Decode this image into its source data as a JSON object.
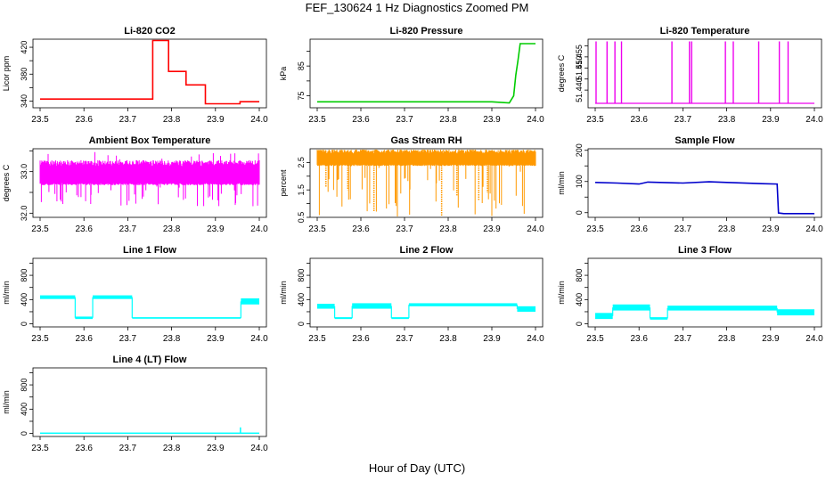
{
  "title": "FEF_130624  1 Hz Diagnostics Zoomed PM",
  "xlabel": "Hour of Day (UTC)",
  "chart_data": [
    {
      "type": "line",
      "title": "Li-820 CO2",
      "ylabel": "Licor ppm",
      "color": "#ff0000",
      "xlim": [
        23.5,
        24.0
      ],
      "ylim": [
        330,
        432
      ],
      "xticks": [
        "23.5",
        "23.6",
        "23.7",
        "23.8",
        "23.9",
        "24.0"
      ],
      "yticks": [
        340,
        360,
        380,
        400,
        420
      ],
      "ytick_labels": [
        "340",
        "",
        "380",
        "",
        "420"
      ],
      "series": [
        {
          "x": [
            23.5,
            23.757,
            23.757,
            23.793,
            23.793,
            23.833,
            23.833,
            23.877,
            23.877,
            23.956,
            23.956,
            24.0
          ],
          "y": [
            343,
            343,
            430,
            430,
            384,
            384,
            364,
            364,
            336,
            336,
            339,
            339
          ]
        }
      ]
    },
    {
      "type": "line",
      "title": "Li-820 Pressure",
      "ylabel": "kPa",
      "color": "#00cc00",
      "xlim": [
        23.5,
        24.0
      ],
      "ylim": [
        71,
        94
      ],
      "xticks": [
        "23.5",
        "23.6",
        "23.7",
        "23.8",
        "23.9",
        "24.0"
      ],
      "yticks": [
        75,
        80,
        85,
        90
      ],
      "ytick_labels": [
        "75",
        "",
        "85",
        ""
      ],
      "series": [
        {
          "x": [
            23.5,
            23.9,
            23.94,
            23.95,
            23.955,
            23.96,
            23.965,
            24.0
          ],
          "y": [
            73,
            73,
            72.6,
            75,
            82,
            87,
            92.5,
            92.5
          ]
        }
      ]
    },
    {
      "type": "line",
      "title": "Li-820 Temperature",
      "ylabel": "degrees C",
      "color": "#ee00ee",
      "xlim": [
        23.5,
        24.0
      ],
      "ylim": [
        51.432,
        51.463
      ],
      "xticks": [
        "23.5",
        "23.6",
        "23.7",
        "23.8",
        "23.9",
        "24.0"
      ],
      "yticks": [
        51.44,
        51.445,
        51.45,
        51.455,
        51.46
      ],
      "ytick_labels": [
        "51.440",
        "",
        "51.450",
        "51.455",
        ""
      ],
      "baseline": 51.434,
      "peak": 51.462,
      "spikes": [
        23.502,
        23.527,
        23.545,
        23.56,
        23.675,
        23.715,
        23.72,
        23.797,
        23.815,
        23.873,
        23.92,
        23.94
      ]
    },
    {
      "type": "line",
      "title": "Ambient Box Temperature",
      "ylabel": "degrees C",
      "color": "#ff00ff",
      "xlim": [
        23.5,
        24.0
      ],
      "ylim": [
        31.9,
        33.55
      ],
      "xticks": [
        "23.5",
        "23.6",
        "23.7",
        "23.8",
        "23.9",
        "24.0"
      ],
      "yticks": [
        32.0,
        32.5,
        33.0,
        33.5
      ],
      "ytick_labels": [
        "32.0",
        "",
        "33.0",
        ""
      ],
      "band": {
        "low": 32.7,
        "high": 33.2,
        "min": 32.1,
        "max": 33.5
      }
    },
    {
      "type": "line",
      "title": "Gas Stream RH",
      "ylabel": "percent",
      "color": "#ff9900",
      "xlim": [
        23.5,
        24.0
      ],
      "ylim": [
        0.5,
        3.0
      ],
      "xticks": [
        "23.5",
        "23.6",
        "23.7",
        "23.8",
        "23.9",
        "24.0"
      ],
      "yticks": [
        0.5,
        1.0,
        1.5,
        2.0,
        2.5
      ],
      "ytick_labels": [
        "0.5",
        "",
        "1.5",
        "",
        "2.5"
      ],
      "band": {
        "low": 2.4,
        "high": 2.9,
        "min": 0.5,
        "max": 3.0
      },
      "dips": [
        {
          "x": 23.63,
          "y": 0.7
        },
        {
          "x": 23.785,
          "y": 0.5
        },
        {
          "x": 23.57,
          "y": 1.5
        },
        {
          "x": 23.82,
          "y": 1.3
        },
        {
          "x": 23.87,
          "y": 1.1
        },
        {
          "x": 23.89,
          "y": 1.4
        },
        {
          "x": 23.52,
          "y": 1.6
        }
      ]
    },
    {
      "type": "line",
      "title": "Sample Flow",
      "ylabel": "ml/min",
      "color": "#0000cc",
      "xlim": [
        23.5,
        24.0
      ],
      "ylim": [
        -15,
        205
      ],
      "xticks": [
        "23.5",
        "23.6",
        "23.7",
        "23.8",
        "23.9",
        "24.0"
      ],
      "yticks": [
        0,
        50,
        100,
        150,
        200
      ],
      "ytick_labels": [
        "0",
        "",
        "100",
        "",
        "200"
      ],
      "series": [
        {
          "x": [
            23.5,
            23.55,
            23.6,
            23.62,
            23.7,
            23.76,
            23.8,
            23.88,
            23.915,
            23.918,
            23.93,
            24.0
          ],
          "y": [
            97,
            95,
            92,
            98,
            95,
            99,
            97,
            93,
            92,
            -1,
            -3,
            -3
          ]
        }
      ]
    },
    {
      "type": "line",
      "title": "Line 1 Flow",
      "ylabel": "ml/min",
      "color": "#00ffff",
      "xlim": [
        23.5,
        24.0
      ],
      "ylim": [
        -50,
        1080
      ],
      "xticks": [
        "23.5",
        "23.6",
        "23.7",
        "23.8",
        "23.9",
        "24.0"
      ],
      "yticks": [
        0,
        200,
        400,
        600,
        800,
        1000
      ],
      "ytick_labels": [
        "0",
        "400",
        "800"
      ],
      "ytick_label_values": [
        0,
        400,
        800
      ],
      "segments": [
        {
          "x0": 23.5,
          "x1": 23.58,
          "low": 410,
          "high": 470
        },
        {
          "x0": 23.58,
          "x1": 23.62,
          "low": 80,
          "high": 120
        },
        {
          "x0": 23.62,
          "x1": 23.71,
          "low": 410,
          "high": 470
        },
        {
          "x0": 23.71,
          "x1": 23.958,
          "low": 85,
          "high": 110
        },
        {
          "x0": 23.958,
          "x1": 24.0,
          "low": 320,
          "high": 420
        }
      ]
    },
    {
      "type": "line",
      "title": "Line 2 Flow",
      "ylabel": "ml/min",
      "color": "#00ffff",
      "xlim": [
        23.5,
        24.0
      ],
      "ylim": [
        -50,
        1080
      ],
      "xticks": [
        "23.5",
        "23.6",
        "23.7",
        "23.8",
        "23.9",
        "24.0"
      ],
      "yticks": [
        0,
        200,
        400,
        600,
        800,
        1000
      ],
      "ytick_labels": [
        "0",
        "400",
        "800"
      ],
      "ytick_label_values": [
        0,
        400,
        800
      ],
      "segments": [
        {
          "x0": 23.5,
          "x1": 23.54,
          "low": 250,
          "high": 330
        },
        {
          "x0": 23.54,
          "x1": 23.58,
          "low": 80,
          "high": 110
        },
        {
          "x0": 23.58,
          "x1": 23.67,
          "low": 250,
          "high": 340
        },
        {
          "x0": 23.67,
          "x1": 23.71,
          "low": 80,
          "high": 110
        },
        {
          "x0": 23.71,
          "x1": 23.958,
          "low": 290,
          "high": 340
        },
        {
          "x0": 23.958,
          "x1": 24.0,
          "low": 200,
          "high": 290
        }
      ]
    },
    {
      "type": "line",
      "title": "Line 3 Flow",
      "ylabel": "ml/min",
      "color": "#00ffff",
      "xlim": [
        23.5,
        24.0
      ],
      "ylim": [
        -50,
        1080
      ],
      "xticks": [
        "23.5",
        "23.6",
        "23.7",
        "23.8",
        "23.9",
        "24.0"
      ],
      "yticks": [
        0,
        200,
        400,
        600,
        800,
        1000
      ],
      "ytick_labels": [
        "0",
        "400",
        "800"
      ],
      "ytick_label_values": [
        0,
        400,
        800
      ],
      "segments": [
        {
          "x0": 23.5,
          "x1": 23.54,
          "low": 80,
          "high": 180
        },
        {
          "x0": 23.54,
          "x1": 23.625,
          "low": 220,
          "high": 320
        },
        {
          "x0": 23.625,
          "x1": 23.665,
          "low": 70,
          "high": 110
        },
        {
          "x0": 23.665,
          "x1": 23.915,
          "low": 220,
          "high": 300
        },
        {
          "x0": 23.915,
          "x1": 24.0,
          "low": 140,
          "high": 240
        }
      ]
    },
    {
      "type": "line",
      "title": "Line 4 (LT) Flow",
      "ylabel": "ml/min",
      "color": "#00ffff",
      "xlim": [
        23.5,
        24.0
      ],
      "ylim": [
        -50,
        1080
      ],
      "xticks": [
        "23.5",
        "23.6",
        "23.7",
        "23.8",
        "23.9",
        "24.0"
      ],
      "yticks": [
        0,
        200,
        400,
        600,
        800,
        1000
      ],
      "ytick_labels": [
        "0",
        "400",
        "800"
      ],
      "ytick_label_values": [
        0,
        400,
        800
      ],
      "segments": [
        {
          "x0": 23.5,
          "x1": 24.0,
          "low": 5,
          "high": 15
        }
      ],
      "spike": {
        "x": 23.957,
        "y": 100
      }
    }
  ]
}
